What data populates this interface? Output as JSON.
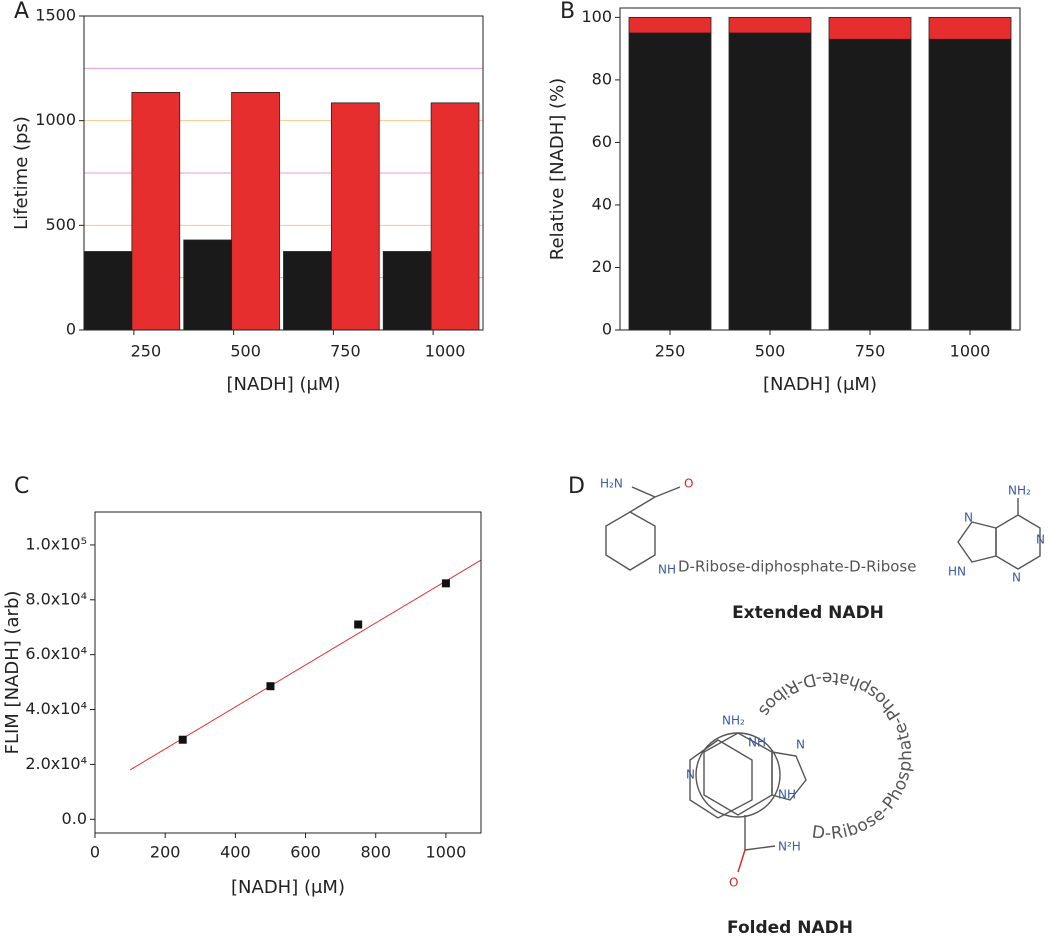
{
  "chart_data": [
    {
      "type": "bar",
      "panel": "A",
      "xlabel": "[NADH] (μM)",
      "ylabel": "Lifetime (ps)",
      "categories": [
        "250",
        "500",
        "750",
        "1000"
      ],
      "series": [
        {
          "color": "#1a1a1a",
          "values": [
            375,
            430,
            375,
            375
          ]
        },
        {
          "color": "#e62e2e",
          "values": [
            1135,
            1135,
            1085,
            1085
          ]
        }
      ],
      "ylim": [
        0,
        1500
      ],
      "yticks": [
        0,
        500,
        1000,
        1500
      ],
      "grid": true,
      "grid_color": "#f3c98b",
      "minor_yticks": [
        250,
        750,
        1250
      ],
      "minor_grid_color": "#ea9ad8"
    },
    {
      "type": "bar",
      "stacked": true,
      "panel": "B",
      "xlabel": "[NADH] (μM)",
      "ylabel": "Relative [NADH] (%)",
      "categories": [
        "250",
        "500",
        "750",
        "1000"
      ],
      "series": [
        {
          "color": "#1a1a1a",
          "values": [
            95,
            95,
            93,
            93
          ]
        },
        {
          "color": "#e62e2e",
          "values": [
            5,
            5,
            7,
            7
          ]
        }
      ],
      "ylim": [
        0,
        103
      ],
      "yticks": [
        0,
        20,
        40,
        60,
        80,
        100
      ]
    },
    {
      "type": "scatter",
      "panel": "C",
      "xlabel": "[NADH] (μM)",
      "ylabel": "FLIM [NADH] (arb)",
      "x": [
        250,
        500,
        750,
        1000
      ],
      "values": [
        29000,
        48500,
        71000,
        86000
      ],
      "color": "#111111",
      "fit_line": {
        "x": [
          100,
          1100
        ],
        "values": [
          18000,
          94500
        ],
        "color": "#e63030"
      },
      "xlim": [
        0,
        1100
      ],
      "xticks": [
        0,
        200,
        400,
        600,
        800,
        1000
      ],
      "ylim": [
        -5000,
        112000
      ],
      "yticks": [
        {
          "value": 0,
          "label": "0.0"
        },
        {
          "value": 20000,
          "label": "2.0x10⁴"
        },
        {
          "value": 40000,
          "label": "4.0x10⁴"
        },
        {
          "value": 60000,
          "label": "6.0x10⁴"
        },
        {
          "value": 80000,
          "label": "8.0x10⁴"
        },
        {
          "value": 100000,
          "label": "1.0x10⁵"
        }
      ]
    }
  ],
  "diagram": {
    "panel": "D",
    "extended": {
      "title": "Extended NADH",
      "linker": "D-Ribose-diphosphate-D-Ribose",
      "amide_n": "H₂N",
      "amide_o": "O",
      "ring_n": "NH",
      "amine": "NH₂",
      "n1": "N",
      "n2": "N",
      "n3": "N",
      "n4": "HN"
    },
    "folded": {
      "title": "Folded NADH",
      "linker": "D-Ribose-Phosphate-Phosphate-D-Ribose",
      "amine": "NH₂",
      "nh1": "NH",
      "n1": "N",
      "n2": "N",
      "nh2": "NH",
      "amide_n": "N²H",
      "amide_o": "O"
    }
  }
}
